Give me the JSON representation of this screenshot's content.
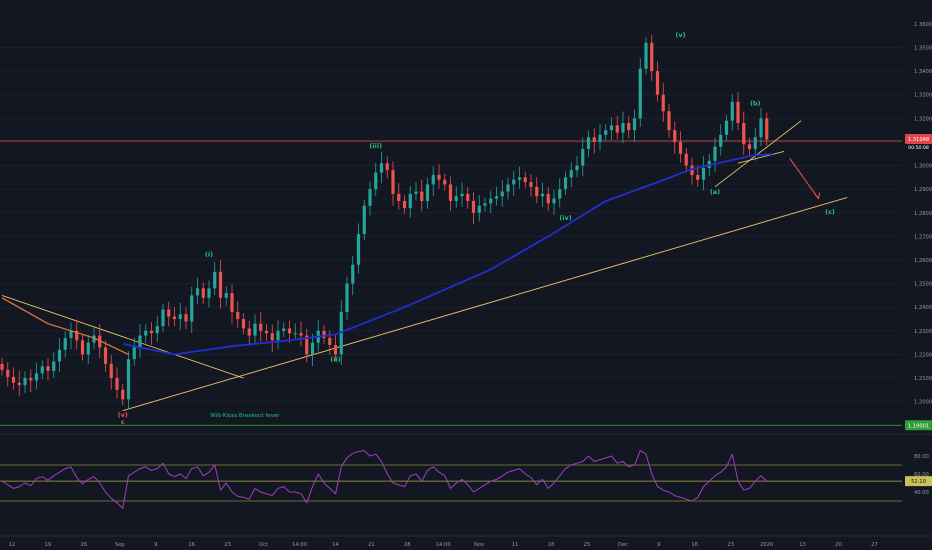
{
  "chart_data": [
    {
      "type": "candlestick",
      "symbol": "GBPUSD",
      "y_axis_ticks": [
        "1.36000",
        "1.35000",
        "1.34000",
        "1.33000",
        "1.32000",
        "1.31000",
        "1.30000",
        "1.29000",
        "1.28000",
        "1.27000",
        "1.26000",
        "1.25000",
        "1.24000",
        "1.23000",
        "1.22000",
        "1.21000",
        "1.20000"
      ],
      "ylim": [
        1.188,
        1.368
      ],
      "x_axis_ticks": [
        "12",
        "19",
        "26",
        "Sep",
        "9",
        "16",
        "23",
        "Oct",
        "14:00",
        "14",
        "21",
        "28",
        "14:00",
        "Nov",
        "11",
        "18",
        "25",
        "Dec",
        "9",
        "16",
        "23",
        "2020",
        "13",
        "20",
        "27"
      ],
      "price_marker_current": {
        "label": "1.31048",
        "value": 1.3104,
        "sub_label": "00:50:08"
      },
      "price_marker_low": {
        "label": "1.19001",
        "value": 1.19
      },
      "horizontal_line_level": 1.3104,
      "wave_labels": [
        {
          "text": "(v)",
          "index": 21,
          "price": 1.1935,
          "color": "#ef5350"
        },
        {
          "text": "c",
          "index": 21,
          "price": 1.1905,
          "color": "#ef5350"
        },
        {
          "text": "(i)",
          "index": 36,
          "price": 1.2615,
          "color": "#26c281"
        },
        {
          "text": "(ii)",
          "index": 58,
          "price": 1.217,
          "color": "#26c281"
        },
        {
          "text": "(iii)",
          "index": 65,
          "price": 1.3075,
          "color": "#26c281"
        },
        {
          "text": "(iv)",
          "index": 98,
          "price": 1.277,
          "color": "#26c281"
        },
        {
          "text": "(v)",
          "index": 118,
          "price": 1.3545,
          "color": "#26c281"
        },
        {
          "text": "(a)",
          "index": 124,
          "price": 1.288,
          "color": "#26c281"
        },
        {
          "text": "(b)",
          "index": 131,
          "price": 1.3255,
          "color": "#26c281"
        },
        {
          "text": "(c)",
          "index": 144,
          "price": 1.2795,
          "color": "#26c281"
        }
      ],
      "annotation_text": "Wilt-Kloss Breakout fever",
      "series": [
        {
          "name": "",
          "kind": "ohlc",
          "index_start": 0,
          "close": [
            1.2135,
            1.2105,
            1.208,
            1.207,
            1.21,
            1.209,
            1.212,
            1.215,
            1.213,
            1.217,
            1.222,
            1.227,
            1.23,
            1.226,
            1.22,
            1.225,
            1.228,
            1.223,
            1.216,
            1.21,
            1.205,
            1.201,
            1.218,
            1.223,
            1.228,
            1.23,
            1.229,
            1.232,
            1.239,
            1.236,
            1.235,
            1.237,
            1.234,
            1.245,
            1.248,
            1.244,
            1.248,
            1.255,
            1.244,
            1.246,
            1.238,
            1.235,
            1.231,
            1.228,
            1.233,
            1.23,
            1.229,
            1.226,
            1.23,
            1.231,
            1.229,
            1.229,
            1.228,
            1.22,
            1.225,
            1.23,
            1.227,
            1.224,
            1.22,
            1.238,
            1.25,
            1.258,
            1.271,
            1.283,
            1.29,
            1.297,
            1.301,
            1.298,
            1.288,
            1.285,
            1.282,
            1.288,
            1.289,
            1.285,
            1.292,
            1.296,
            1.294,
            1.292,
            1.285,
            1.287,
            1.288,
            1.285,
            1.28,
            1.283,
            1.284,
            1.286,
            1.287,
            1.289,
            1.292,
            1.294,
            1.295,
            1.293,
            1.291,
            1.287,
            1.288,
            1.284,
            1.286,
            1.29,
            1.295,
            1.298,
            1.3,
            1.307,
            1.312,
            1.31,
            1.313,
            1.315,
            1.317,
            1.314,
            1.318,
            1.315,
            1.32,
            1.341,
            1.352,
            1.34,
            1.33,
            1.323,
            1.315,
            1.31,
            1.305,
            1.3,
            1.296,
            1.294,
            1.299,
            1.302,
            1.308,
            1.313,
            1.319,
            1.327,
            1.318,
            1.309,
            1.307,
            1.312,
            1.32,
            1.311
          ],
          "open": [
            1.216,
            1.2135,
            1.2105,
            1.208,
            1.207,
            1.21,
            1.209,
            1.212,
            1.215,
            1.213,
            1.217,
            1.222,
            1.227,
            1.23,
            1.226,
            1.22,
            1.225,
            1.228,
            1.223,
            1.216,
            1.21,
            1.205,
            1.201,
            1.218,
            1.223,
            1.228,
            1.23,
            1.229,
            1.232,
            1.239,
            1.236,
            1.235,
            1.237,
            1.234,
            1.245,
            1.248,
            1.244,
            1.248,
            1.255,
            1.244,
            1.246,
            1.238,
            1.235,
            1.231,
            1.228,
            1.233,
            1.23,
            1.229,
            1.226,
            1.23,
            1.231,
            1.229,
            1.229,
            1.228,
            1.22,
            1.225,
            1.23,
            1.227,
            1.224,
            1.22,
            1.238,
            1.25,
            1.258,
            1.271,
            1.283,
            1.29,
            1.297,
            1.301,
            1.298,
            1.288,
            1.285,
            1.282,
            1.288,
            1.289,
            1.285,
            1.292,
            1.296,
            1.294,
            1.292,
            1.285,
            1.287,
            1.288,
            1.285,
            1.28,
            1.283,
            1.284,
            1.286,
            1.287,
            1.289,
            1.292,
            1.294,
            1.295,
            1.293,
            1.291,
            1.287,
            1.288,
            1.284,
            1.286,
            1.29,
            1.295,
            1.298,
            1.3,
            1.307,
            1.312,
            1.31,
            1.313,
            1.315,
            1.317,
            1.314,
            1.318,
            1.315,
            1.32,
            1.341,
            1.352,
            1.34,
            1.33,
            1.323,
            1.315,
            1.31,
            1.305,
            1.3,
            1.296,
            1.294,
            1.299,
            1.302,
            1.308,
            1.313,
            1.319,
            1.327,
            1.318,
            1.309,
            1.307,
            1.312,
            1.32
          ]
        }
      ],
      "moving_average_200": {
        "name": "",
        "color": "#1f2fd0",
        "points": [
          [
            21,
            1.2245
          ],
          [
            30,
            1.22
          ],
          [
            40,
            1.2235
          ],
          [
            50,
            1.226
          ],
          [
            58,
            1.2285
          ],
          [
            70,
            1.24
          ],
          [
            85,
            1.256
          ],
          [
            95,
            1.27
          ],
          [
            105,
            1.285
          ],
          [
            113,
            1.292
          ],
          [
            120,
            1.2985
          ],
          [
            130,
            1.304
          ],
          [
            134,
            1.305
          ]
        ]
      },
      "moving_average_ema": {
        "name": "",
        "color": "#e07b39",
        "points": [
          [
            0,
            1.244
          ],
          [
            8,
            1.233
          ],
          [
            16,
            1.227
          ],
          [
            22,
            1.22
          ]
        ]
      },
      "trendlines": [
        {
          "color": "#e8c06a",
          "from": [
            21,
            1.1962
          ],
          "to": [
            147,
            1.2865
          ]
        },
        {
          "color": "#e8c06a",
          "from": [
            0,
            1.245
          ],
          "to": [
            42,
            1.21
          ]
        },
        {
          "color": "#e8c06a",
          "from": [
            124,
            1.291
          ],
          "to": [
            139,
            1.319
          ]
        },
        {
          "color": "#e8c06a",
          "from": [
            128,
            1.301
          ],
          "to": [
            136,
            1.306
          ]
        }
      ],
      "arrow": {
        "color": "#ef5350",
        "from": [
          137,
          1.303
        ],
        "to": [
          142,
          1.286
        ]
      },
      "rsi": {
        "ticks": [
          "80.00",
          "60.00",
          "40.00"
        ],
        "upper_band": 70,
        "lower_band": 30,
        "current_label": "52.10",
        "current_value": 52.1,
        "values": [
          52,
          48,
          44,
          46,
          50,
          47,
          55,
          57,
          53,
          58,
          62,
          66,
          68,
          56,
          49,
          54,
          57,
          50,
          40,
          33,
          28,
          22,
          58,
          62,
          66,
          68,
          64,
          66,
          72,
          60,
          57,
          60,
          55,
          66,
          68,
          58,
          62,
          70,
          42,
          50,
          40,
          35,
          34,
          32,
          44,
          40,
          38,
          36,
          44,
          46,
          40,
          40,
          38,
          28,
          46,
          60,
          50,
          44,
          38,
          68,
          78,
          83,
          85,
          86,
          80,
          82,
          74,
          60,
          50,
          48,
          46,
          58,
          60,
          52,
          64,
          68,
          62,
          58,
          44,
          50,
          54,
          48,
          40,
          44,
          48,
          52,
          54,
          58,
          62,
          64,
          66,
          60,
          56,
          48,
          54,
          44,
          50,
          58,
          66,
          70,
          72,
          74,
          80,
          74,
          76,
          78,
          80,
          72,
          74,
          68,
          70,
          86,
          82,
          60,
          46,
          42,
          40,
          36,
          34,
          32,
          30,
          34,
          46,
          52,
          58,
          62,
          68,
          82,
          52,
          42,
          44,
          52,
          58,
          52
        ]
      }
    }
  ]
}
